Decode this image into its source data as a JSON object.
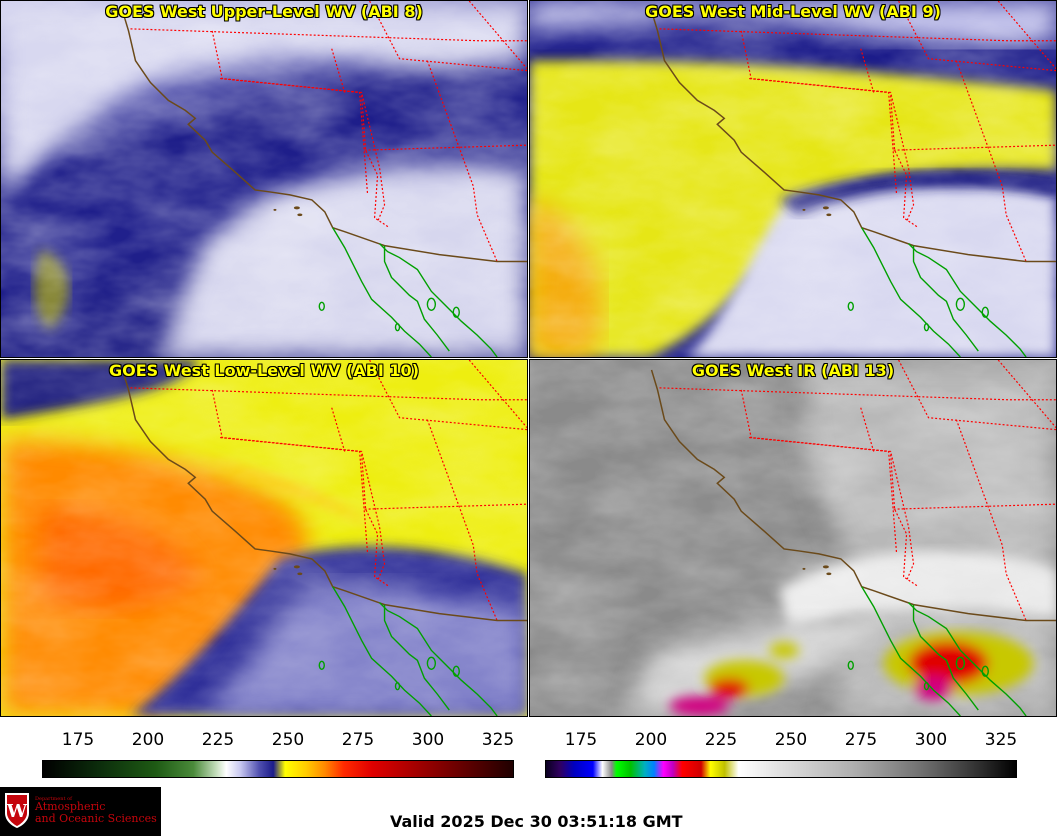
{
  "panels": [
    {
      "title": "GOES West Upper-Level WV (ABI 8)"
    },
    {
      "title": "GOES West Mid-Level WV (ABI 9)"
    },
    {
      "title": "GOES West Low-Level WV (ABI 10)"
    },
    {
      "title": "GOES West IR (ABI 13)"
    }
  ],
  "scales": {
    "left": {
      "ticks": [
        "175",
        "200",
        "225",
        "250",
        "275",
        "300",
        "325"
      ],
      "colormap": "water-vapor"
    },
    "right": {
      "ticks": [
        "175",
        "200",
        "225",
        "250",
        "275",
        "300",
        "325"
      ],
      "colormap": "infrared"
    }
  },
  "logo": {
    "dept": "Department of",
    "line1": "Atmospheric",
    "line2": "and Oceanic Sciences",
    "shield_letter": "W",
    "colors": {
      "background": "#000000",
      "text": "#c5050c"
    }
  },
  "footer": {
    "valid": "Valid 2025 Dec 30 03:51:18 GMT"
  },
  "colors": {
    "title_text": "#ffff00",
    "state_borders": "#ff0000",
    "coastline": "#6b4a1a",
    "mexico_coast": "#00a000"
  }
}
